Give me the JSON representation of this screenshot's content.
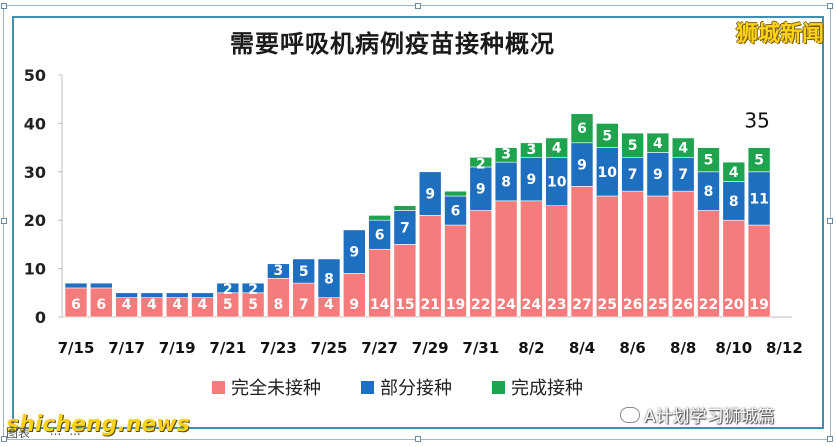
{
  "brand": "狮城新闻",
  "watermark_left": "shicheng.news",
  "watermark_right": "A计划学习狮城篇",
  "caption": [
    "图表",
    "·",
    "...",
    "..."
  ],
  "chart_data": {
    "type": "bar",
    "stacked": true,
    "title": "需要呼吸机病例疫苗接种概况",
    "ylim": [
      0,
      50
    ],
    "yticks": [
      0,
      10,
      20,
      30,
      40,
      50
    ],
    "xtick_labels": [
      "7/15",
      "7/17",
      "7/19",
      "7/21",
      "7/23",
      "7/25",
      "7/27",
      "7/29",
      "7/31",
      "8/2",
      "8/4",
      "8/6",
      "8/8",
      "8/10",
      "8/12"
    ],
    "categories": [
      "7/15",
      "7/16",
      "7/17",
      "7/18",
      "7/19",
      "7/20",
      "7/21",
      "7/22",
      "7/23",
      "7/24",
      "7/25",
      "7/26",
      "7/27",
      "7/28",
      "7/29",
      "7/30",
      "7/31",
      "8/1",
      "8/2",
      "8/3",
      "8/4",
      "8/5",
      "8/6",
      "8/7",
      "8/8",
      "8/9",
      "8/10",
      "8/11"
    ],
    "series": [
      {
        "name": "完全未接种",
        "color": "#f47c7c",
        "values": [
          6,
          6,
          4,
          4,
          4,
          4,
          5,
          5,
          8,
          7,
          4,
          9,
          14,
          15,
          21,
          19,
          22,
          24,
          24,
          23,
          27,
          25,
          26,
          25,
          26,
          22,
          20,
          19
        ]
      },
      {
        "name": "部分接种",
        "color": "#1f6fc1",
        "values": [
          1,
          1,
          1,
          1,
          1,
          1,
          2,
          2,
          3,
          5,
          8,
          9,
          6,
          7,
          9,
          6,
          9,
          8,
          9,
          10,
          9,
          10,
          7,
          9,
          7,
          8,
          8,
          11
        ]
      },
      {
        "name": "完成接种",
        "color": "#1ea44f",
        "values": [
          0,
          0,
          0,
          0,
          0,
          0,
          0,
          0,
          0,
          0,
          0,
          0,
          1,
          1,
          0,
          1,
          2,
          3,
          3,
          4,
          6,
          5,
          5,
          4,
          4,
          5,
          4,
          5
        ]
      }
    ],
    "labels": {
      "完全未接种": [
        "6",
        "6",
        "4",
        "4",
        "4",
        "4",
        "5",
        "5",
        "8",
        "7",
        "4",
        "9",
        "14",
        "15",
        "21",
        "19",
        "22",
        "24",
        "24",
        "23",
        "27",
        "25",
        "26",
        "25",
        "26",
        "22",
        "20",
        "19"
      ],
      "部分接种": [
        "",
        "",
        "",
        "",
        "",
        "",
        "2",
        "2",
        "3",
        "5",
        "8",
        "9",
        "6",
        "7",
        "9",
        "6",
        "9",
        "8",
        "9",
        "10",
        "9",
        "10",
        "7",
        "9",
        "7",
        "8",
        "8",
        "11"
      ],
      "完成接种": [
        "",
        "",
        "",
        "",
        "",
        "",
        "",
        "",
        "",
        "",
        "",
        "",
        "",
        "",
        "",
        "",
        "2",
        "3",
        "3",
        "4",
        "6",
        "5",
        "5",
        "4",
        "4",
        "5",
        "4",
        "5"
      ]
    },
    "annotation": {
      "category": "8/11",
      "text": "35"
    },
    "grid": false,
    "legend_position": "bottom"
  }
}
